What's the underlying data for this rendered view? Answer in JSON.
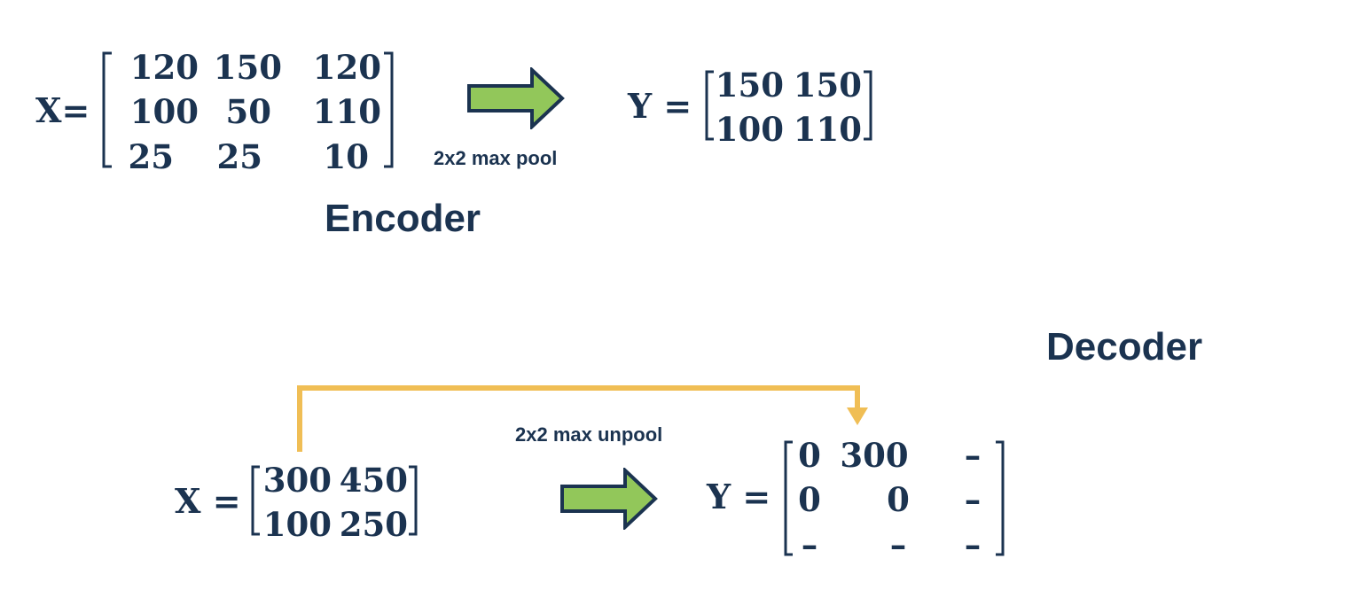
{
  "encoder": {
    "title": "Encoder",
    "input_label": "X=",
    "input_matrix": [
      [
        "120",
        "150",
        "120"
      ],
      [
        "100",
        "50",
        "110"
      ],
      [
        "25",
        "25",
        "10"
      ]
    ],
    "operation_label": "2x2 max pool",
    "output_label": "Y =",
    "output_matrix": [
      [
        "150",
        "150"
      ],
      [
        "100",
        "110"
      ]
    ]
  },
  "decoder": {
    "title": "Decoder",
    "input_label": "X =",
    "input_matrix": [
      [
        "300",
        "450"
      ],
      [
        "100",
        "250"
      ]
    ],
    "operation_label": "2x2 max unpool",
    "output_label": "Y =",
    "output_matrix": [
      [
        "0",
        "300",
        "–"
      ],
      [
        "0",
        "0",
        "–"
      ],
      [
        "–",
        "–",
        "–"
      ]
    ]
  },
  "colors": {
    "text": "#1b3350",
    "arrow_fill": "#92c75a",
    "arrow_stroke": "#1b3350",
    "connector": "#f0be55"
  }
}
